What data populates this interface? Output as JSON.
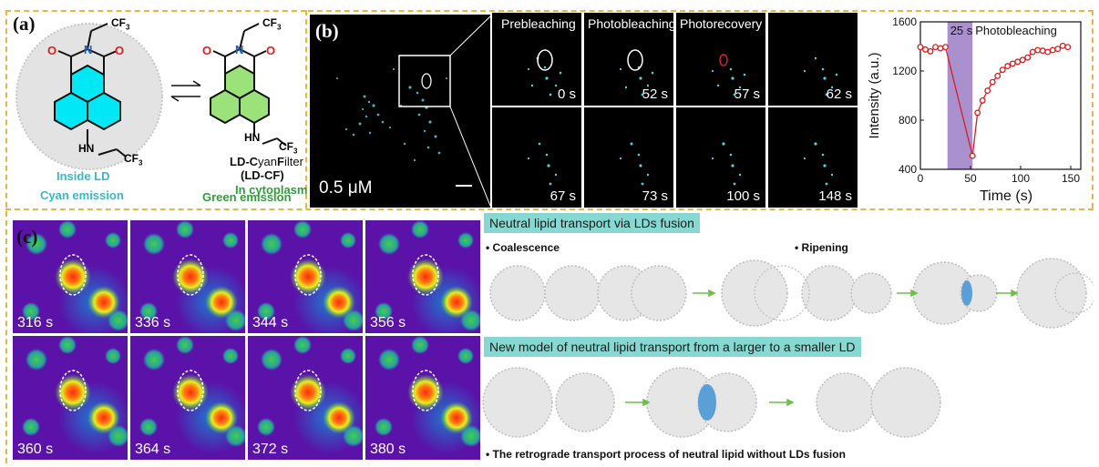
{
  "panel_a": {
    "label": "(a)",
    "cf3_top_left": "CF",
    "cf3_top_right": "CF",
    "cf3_sub": "3",
    "nh_left": "HN",
    "nh_right": "HN",
    "cf3_bot_left": "CF",
    "cf3_bot_right": "CF",
    "name_line1_parts": [
      "LD-C",
      "yan",
      "F",
      "ilter"
    ],
    "name_line2": "(LD-CF)",
    "inside_ld": "Inside LD",
    "cyan_emission": "Cyan emission",
    "in_cytoplasm": "In cytoplasm",
    "green_emission": "Green emission",
    "colors": {
      "cyan_text": "#3ab7c9",
      "green_text": "#2f9e3a",
      "ring_cyan": "#00e5f5",
      "ring_green": "#9be27a"
    }
  },
  "panel_b": {
    "label": "(b)",
    "concentration": "0.5 μM",
    "headers": [
      "Prebleaching",
      "Photobleaching",
      "Photorecovery"
    ],
    "times": [
      "0 s",
      "52 s",
      "57 s",
      "62 s",
      "67 s",
      "73 s",
      "100 s",
      "148 s"
    ]
  },
  "chart_data": {
    "type": "line",
    "title": "",
    "xlabel": "Time (s)",
    "ylabel": "Intensity (a.u.)",
    "xlim": [
      0,
      160
    ],
    "ylim": [
      400,
      1600
    ],
    "xticks": [
      0,
      50,
      100,
      150
    ],
    "yticks": [
      400,
      800,
      1200,
      1600
    ],
    "band": {
      "x_range": [
        27,
        52
      ],
      "label": "25 s",
      "color": "#9b7cc4"
    },
    "annotation": "Photobleaching",
    "series": [
      {
        "color": "#d42020",
        "x": [
          0,
          5,
          10,
          15,
          20,
          25,
          52,
          57,
          62,
          67,
          72,
          77,
          82,
          87,
          92,
          97,
          102,
          107,
          112,
          117,
          122,
          127,
          132,
          137,
          142,
          147
        ],
        "y": [
          1395,
          1375,
          1360,
          1395,
          1385,
          1395,
          510,
          860,
          960,
          1040,
          1110,
          1160,
          1210,
          1240,
          1260,
          1275,
          1290,
          1310,
          1355,
          1370,
          1365,
          1355,
          1370,
          1380,
          1405,
          1395
        ]
      }
    ]
  },
  "panel_c": {
    "label": "(c)",
    "times": [
      "316 s",
      "336 s",
      "344 s",
      "356 s",
      "360 s",
      "364 s",
      "372 s",
      "380 s"
    ],
    "banner1": "Neutral  lipid transport via LDs fusion",
    "coalescence": "• Coalescence",
    "ripening": "• Ripening",
    "banner2": "New model of neutral lipid transport from a larger to a smaller LD",
    "caption": "• The retrograde transport process of neutral lipid  without LDs fusion"
  }
}
